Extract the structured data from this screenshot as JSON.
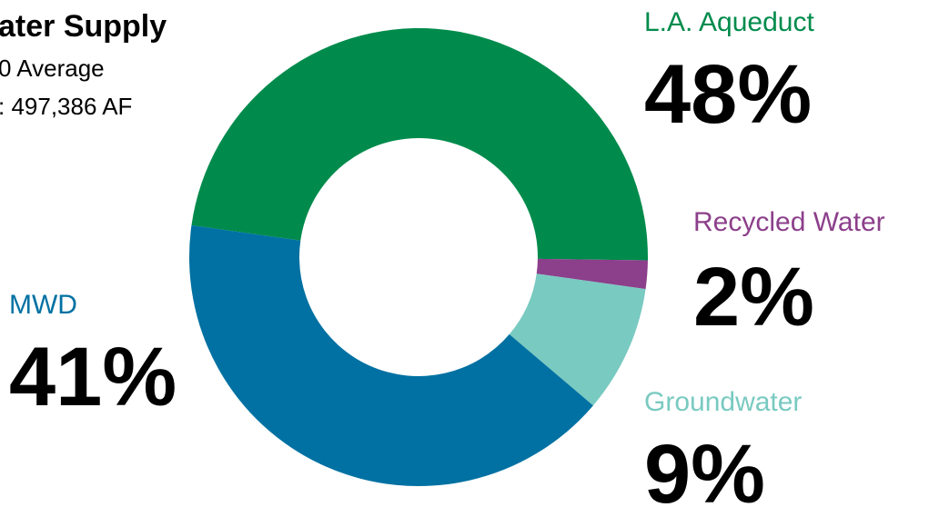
{
  "chart_data": {
    "type": "donut",
    "title": "ater Supply",
    "subtitle": [
      "0 Average",
      ": 497,386 AF"
    ],
    "categories": [
      "L.A. Aqueduct",
      "Recycled Water",
      "Groundwater",
      "MWD"
    ],
    "values": [
      48,
      2,
      9,
      41
    ],
    "value_labels": [
      "48%",
      "2%",
      "9%",
      "41%"
    ],
    "colors": [
      "#008b4c",
      "#8c3f8b",
      "#79cac1",
      "#0071a2"
    ]
  }
}
